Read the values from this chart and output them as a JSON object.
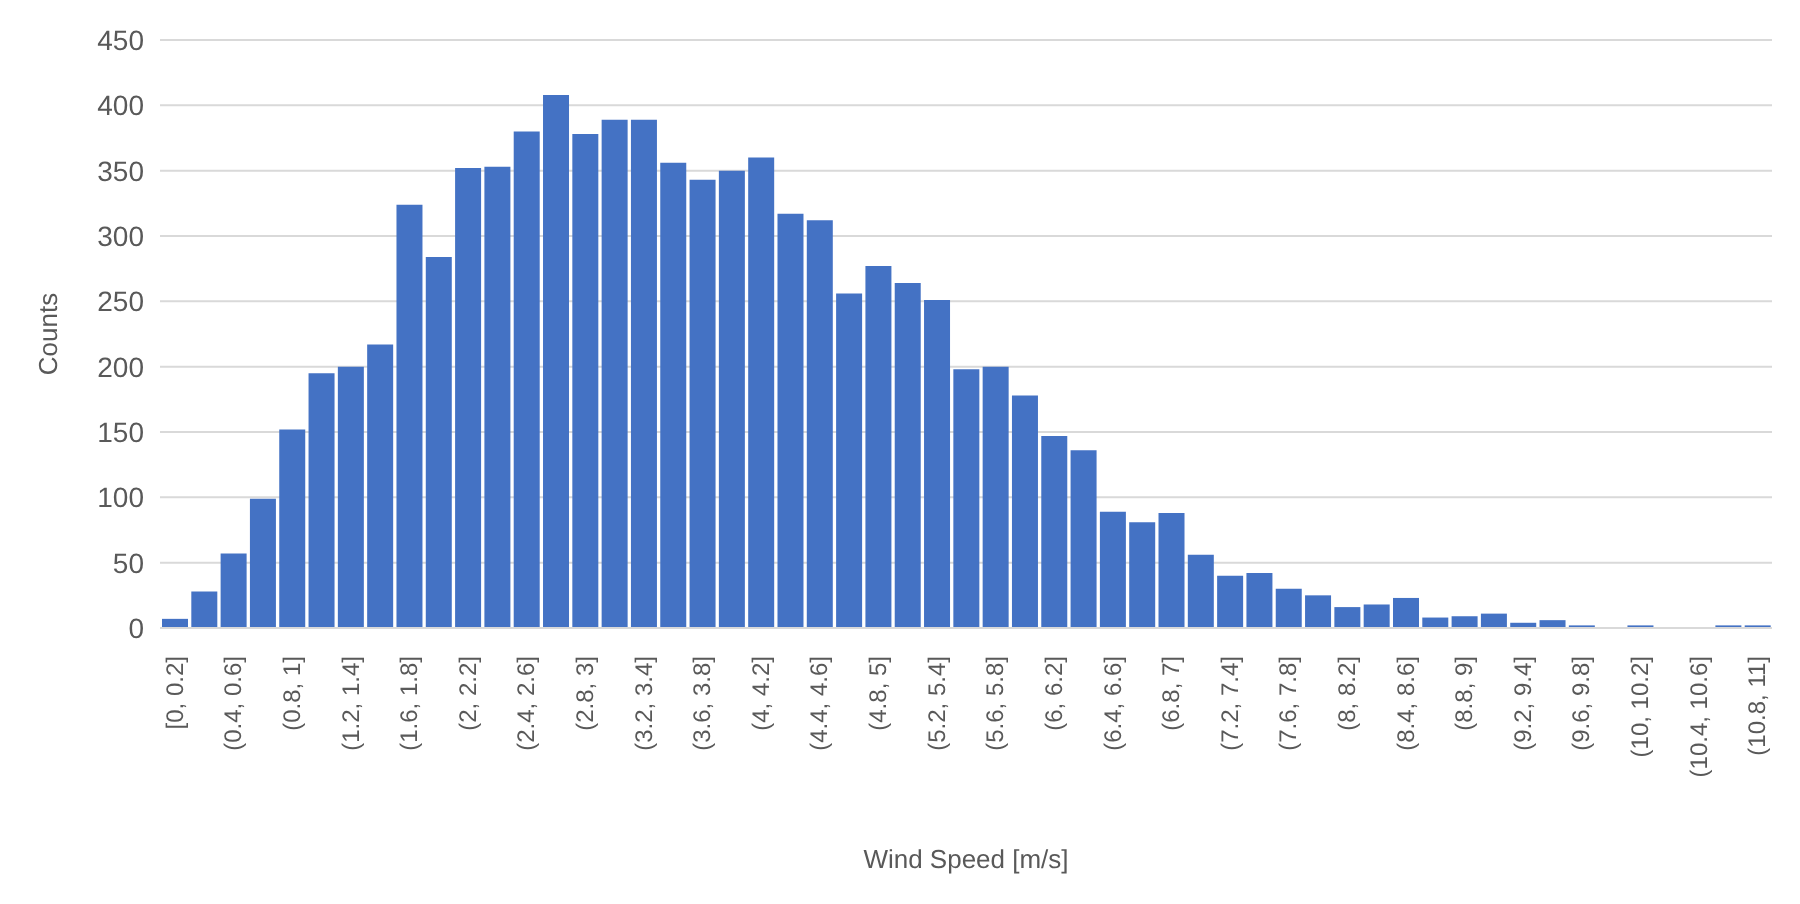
{
  "chart_data": {
    "type": "bar",
    "xlabel": "Wind Speed [m/s]",
    "ylabel": "Counts",
    "categories": [
      "[0, 0.2]",
      null,
      "(0.4, 0.6]",
      null,
      "(0.8, 1]",
      null,
      "(1.2, 1.4]",
      null,
      "(1.6, 1.8]",
      null,
      "(2, 2.2]",
      null,
      "(2.4, 2.6]",
      null,
      "(2.8, 3]",
      null,
      "(3.2, 3.4]",
      null,
      "(3.6, 3.8]",
      null,
      "(4, 4.2]",
      null,
      "(4.4, 4.6]",
      null,
      "(4.8, 5]",
      null,
      "(5.2, 5.4]",
      null,
      "(5.6, 5.8]",
      null,
      "(6, 6.2]",
      null,
      "(6.4, 6.6]",
      null,
      "(6.8, 7]",
      null,
      "(7.2, 7.4]",
      null,
      "(7.6, 7.8]",
      null,
      "(8, 8.2]",
      null,
      "(8.4, 8.6]",
      null,
      "(8.8, 9]",
      null,
      "(9.2, 9.4]",
      null,
      "(9.6, 9.8]",
      null,
      "(10, 10.2]",
      null,
      "(10.4, 10.6]",
      null,
      "(10.8, 11]"
    ],
    "values": [
      7,
      28,
      57,
      99,
      152,
      195,
      200,
      217,
      324,
      284,
      352,
      353,
      380,
      408,
      378,
      389,
      389,
      356,
      343,
      350,
      360,
      317,
      312,
      256,
      277,
      264,
      251,
      198,
      200,
      178,
      147,
      136,
      89,
      81,
      88,
      56,
      40,
      42,
      30,
      25,
      16,
      18,
      23,
      8,
      9,
      11,
      4,
      6,
      2,
      0,
      2,
      0,
      0,
      2,
      2
    ],
    "color": "#4472c4",
    "ylim": [
      0,
      450
    ],
    "yticks": [
      0,
      50,
      100,
      150,
      200,
      250,
      300,
      350,
      400,
      450
    ],
    "grid": "y",
    "legend": false
  }
}
